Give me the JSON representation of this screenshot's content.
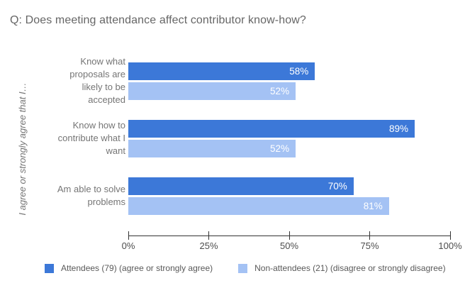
{
  "title": "Q: Does meeting attendance affect contributor know-how?",
  "chart_data": {
    "type": "bar",
    "orientation": "horizontal",
    "title": "Q: Does meeting attendance affect contributor know-how?",
    "ylabel": "I agree or strongly agree that I…",
    "xlabel": "",
    "xlim": [
      0,
      100
    ],
    "grid": false,
    "legend_position": "bottom",
    "categories": [
      "Know what proposals are likely to be accepted",
      "Know how to contribute what I want",
      "Am able to solve problems"
    ],
    "category_lines": [
      [
        "Know what",
        "proposals are",
        "likely to be",
        "accepted"
      ],
      [
        "Know how to",
        "contribute what I",
        "want"
      ],
      [
        "Am able to solve",
        "problems"
      ]
    ],
    "series": [
      {
        "name": "Attendees (79) (agree or strongly agree)",
        "color": "#3c78d8",
        "values": [
          58,
          89,
          70
        ],
        "value_labels": [
          "58%",
          "89%",
          "70%"
        ]
      },
      {
        "name": "Non-attendees (21) (disagree or strongly disagree)",
        "color": "#a4c2f4",
        "values": [
          52,
          52,
          81
        ],
        "value_labels": [
          "52%",
          "52%",
          "81%"
        ]
      }
    ],
    "x_ticks": [
      {
        "label": "0%",
        "value": 0
      },
      {
        "label": "25%",
        "value": 25
      },
      {
        "label": "50%",
        "value": 50
      },
      {
        "label": "75%",
        "value": 75
      },
      {
        "label": "100%",
        "value": 100
      }
    ]
  },
  "colors": {
    "axis": "#333333",
    "title_text": "#666666",
    "label_text": "#757575",
    "tick_text": "#4d4d4d",
    "legend_text": "#595959",
    "background": "#ffffff"
  }
}
